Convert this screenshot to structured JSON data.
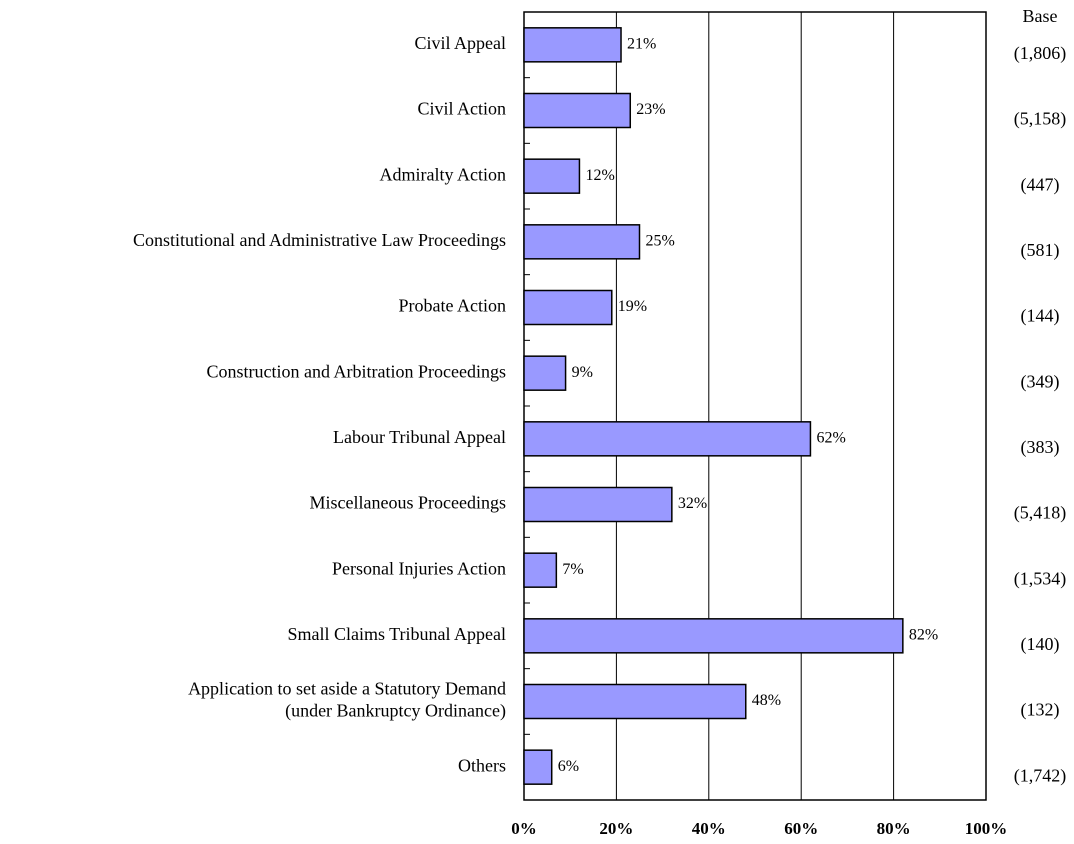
{
  "chart_data": {
    "type": "hbar",
    "categories": [
      "Civil Appeal",
      "Civil Action",
      "Admiralty Action",
      "Constitutional and Administrative Law Proceedings",
      "Probate Action",
      "Construction and Arbitration Proceedings",
      "Labour Tribunal Appeal",
      "Miscellaneous Proceedings",
      "Personal Injuries Action",
      "Small Claims Tribunal Appeal",
      "Application to set aside a Statutory Demand\n(under Bankruptcy Ordinance)",
      "Others"
    ],
    "values": [
      21,
      23,
      12,
      25,
      19,
      9,
      62,
      32,
      7,
      82,
      48,
      6
    ],
    "value_labels": [
      "21%",
      "23%",
      "12%",
      "25%",
      "19%",
      "9%",
      "62%",
      "32%",
      "7%",
      "82%",
      "48%",
      "6%"
    ],
    "base_title": "Base",
    "bases": [
      "(1,806)",
      "(5,158)",
      "(447)",
      "(581)",
      "(144)",
      "(349)",
      "(383)",
      "(5,418)",
      "(1,534)",
      "(140)",
      "(132)",
      "(1,742)"
    ],
    "color": "#9999ff",
    "xlim": [
      0,
      100
    ],
    "xticks": [
      {
        "value": 0,
        "label": "0%"
      },
      {
        "value": 20,
        "label": "20%"
      },
      {
        "value": 40,
        "label": "40%"
      },
      {
        "value": 60,
        "label": "60%"
      },
      {
        "value": 80,
        "label": "80%"
      },
      {
        "value": 100,
        "label": "100%"
      }
    ],
    "grid": true
  }
}
